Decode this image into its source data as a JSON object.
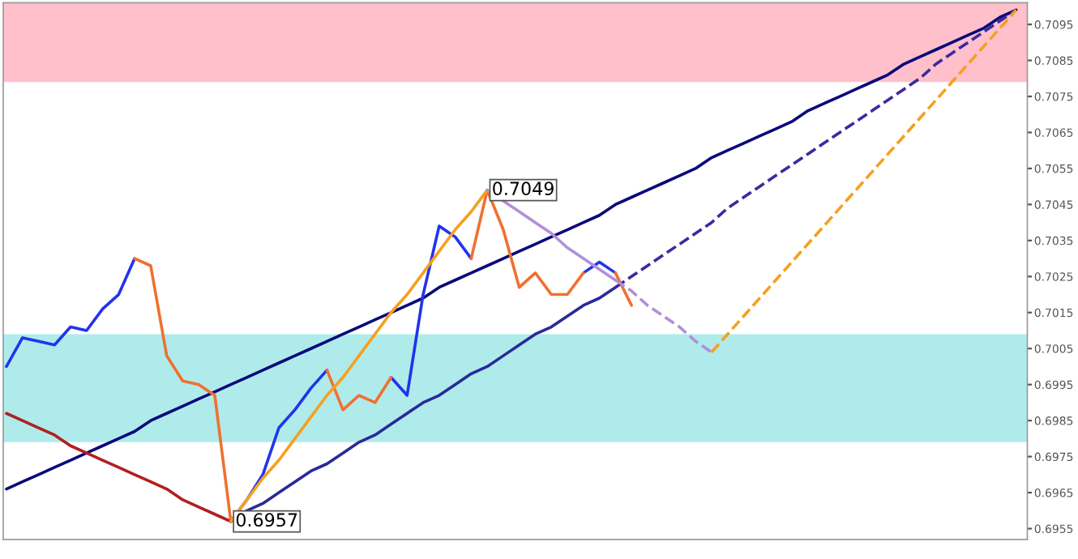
{
  "chart_data": {
    "type": "line",
    "categories": [
      null,
      null,
      null,
      null,
      null,
      null,
      null,
      null,
      null,
      null,
      null,
      null,
      null,
      null,
      null,
      null,
      null,
      null,
      null,
      null,
      null,
      null,
      null,
      null,
      null,
      null,
      null,
      null,
      null,
      null,
      null,
      null,
      null,
      null,
      null,
      null,
      null,
      null,
      null,
      null,
      null,
      null,
      null,
      null,
      null,
      null,
      null,
      null,
      null,
      null,
      null,
      null,
      null,
      null,
      null,
      null,
      null,
      null,
      null,
      null,
      null,
      null,
      null,
      null
    ],
    "ylim": [
      0.6952,
      0.7101
    ],
    "yticks": [
      0.6955,
      0.6965,
      0.6975,
      0.6985,
      0.6995,
      0.7005,
      0.7015,
      0.7025,
      0.7035,
      0.7045,
      0.7055,
      0.7065,
      0.7075,
      0.7085,
      0.7095
    ],
    "tick_labels": "y",
    "grid": false,
    "legend": false,
    "bands": [
      {
        "axis": "y",
        "from": 0.7079,
        "to": 0.7101,
        "color": "#ffc0cb"
      },
      {
        "axis": "y",
        "from": 0.6979,
        "to": 0.7009,
        "color": "#b0ebeb"
      }
    ],
    "series": [
      {
        "color": "#0a0a7a",
        "line_style": "solid",
        "values": [
          0.6966,
          0.6968,
          0.697,
          0.6972,
          0.6974,
          0.6976,
          0.6978,
          0.698,
          0.6982,
          0.6985,
          0.6987,
          0.6989,
          0.6991,
          0.6993,
          0.6995,
          0.6997,
          0.6999,
          0.7001,
          0.7003,
          0.7005,
          0.7007,
          0.7009,
          0.7011,
          0.7013,
          0.7015,
          0.7017,
          0.7019,
          0.7022,
          0.7024,
          0.7026,
          0.7028,
          0.703,
          0.7032,
          0.7034,
          0.7036,
          0.7038,
          0.704,
          0.7042,
          0.7045,
          0.7047,
          0.7049,
          0.7051,
          0.7053,
          0.7055,
          0.7058,
          0.706,
          0.7062,
          0.7064,
          0.7066,
          0.7068,
          0.7071,
          0.7073,
          0.7075,
          0.7077,
          0.7079,
          0.7081,
          0.7084,
          0.7086,
          0.7088,
          0.709,
          0.7092,
          0.7094,
          0.7097,
          0.7099
        ]
      },
      {
        "color": "#2233ee",
        "line_style": "solid",
        "values": [
          0.7,
          0.7008,
          0.7007,
          0.7006,
          0.7011,
          0.701,
          0.7016,
          0.702,
          0.703,
          null,
          null,
          null,
          null,
          null,
          0.6957,
          0.6963,
          0.697,
          0.6983,
          0.6988,
          0.6994,
          0.6999,
          null,
          null,
          null,
          0.6997,
          0.6992,
          0.702,
          0.7039,
          0.7036,
          0.703,
          null,
          null,
          null,
          null,
          null,
          null,
          0.7026,
          0.7029,
          0.7026,
          null,
          null,
          null,
          null,
          null,
          null,
          null,
          null,
          null,
          null,
          null,
          null,
          null,
          null,
          null,
          null,
          null,
          null,
          null,
          null,
          null,
          null,
          null,
          null,
          null
        ]
      },
      {
        "color": "#f07030",
        "line_style": "solid",
        "values": [
          null,
          null,
          null,
          null,
          null,
          null,
          null,
          null,
          0.703,
          0.7028,
          0.7003,
          0.6996,
          0.6995,
          0.6992,
          0.6957,
          null,
          null,
          null,
          null,
          null,
          0.6999,
          0.6988,
          0.6992,
          0.699,
          0.6997,
          null,
          null,
          null,
          null,
          0.703,
          0.7049,
          0.7038,
          0.7022,
          0.7026,
          0.702,
          0.702,
          0.7026,
          null,
          0.7026,
          0.7017,
          null,
          null,
          null,
          null,
          null,
          null,
          null,
          null,
          null,
          null,
          null,
          null,
          null,
          null,
          null,
          null,
          null,
          null,
          null,
          null,
          null,
          null,
          null,
          null
        ]
      },
      {
        "color": "#2a2a9a",
        "line_style": "solid",
        "values": [
          null,
          null,
          null,
          null,
          null,
          null,
          null,
          null,
          null,
          null,
          null,
          null,
          null,
          null,
          0.6957,
          0.696,
          0.6962,
          0.6965,
          0.6968,
          0.6971,
          0.6973,
          0.6976,
          0.6979,
          0.6981,
          0.6984,
          0.6987,
          0.699,
          0.6992,
          0.6995,
          0.6998,
          0.7,
          0.7003,
          0.7006,
          0.7009,
          0.7011,
          0.7014,
          0.7017,
          0.7019,
          0.7022,
          null,
          null,
          null,
          null,
          null,
          null,
          null,
          null,
          null,
          null,
          null,
          null,
          null,
          null,
          null,
          null,
          null,
          null,
          null,
          null,
          null,
          null,
          null,
          null,
          null
        ]
      },
      {
        "color": "#3a2aa0",
        "line_style": "dashed",
        "values": [
          null,
          null,
          null,
          null,
          null,
          null,
          null,
          null,
          null,
          null,
          null,
          null,
          null,
          null,
          null,
          null,
          null,
          null,
          null,
          null,
          null,
          null,
          null,
          null,
          null,
          null,
          null,
          null,
          null,
          null,
          null,
          null,
          null,
          null,
          null,
          null,
          null,
          null,
          0.7022,
          0.7025,
          0.7028,
          0.7031,
          0.7034,
          0.7037,
          0.704,
          0.7044,
          0.7047,
          0.705,
          0.7053,
          0.7056,
          0.7059,
          0.7062,
          0.7065,
          0.7068,
          0.7071,
          0.7074,
          0.7077,
          0.708,
          0.7084,
          0.7087,
          0.709,
          0.7093,
          0.7096,
          0.7099
        ]
      },
      {
        "color": "#b02020",
        "line_style": "solid",
        "values": [
          0.6987,
          0.6985,
          0.6983,
          0.6981,
          0.6978,
          0.6976,
          0.6974,
          0.6972,
          0.697,
          0.6968,
          0.6966,
          0.6963,
          0.6961,
          0.6959,
          0.6957,
          null,
          null,
          null,
          null,
          null,
          null,
          null,
          null,
          null,
          null,
          null,
          null,
          null,
          null,
          null,
          null,
          null,
          null,
          null,
          null,
          null,
          null,
          null,
          null,
          null,
          null,
          null,
          null,
          null,
          null,
          null,
          null,
          null,
          null,
          null,
          null,
          null,
          null,
          null,
          null,
          null,
          null,
          null,
          null,
          null,
          null,
          null,
          null,
          null
        ]
      },
      {
        "color": "#f5a020",
        "line_style": "solid",
        "values": [
          null,
          null,
          null,
          null,
          null,
          null,
          null,
          null,
          null,
          null,
          null,
          null,
          null,
          null,
          0.6957,
          0.6963,
          0.6969,
          0.6974,
          0.698,
          0.6986,
          0.6992,
          0.6997,
          0.7003,
          0.7009,
          0.7015,
          0.702,
          0.7026,
          0.7032,
          0.7038,
          0.7043,
          0.7049,
          null,
          null,
          null,
          null,
          null,
          null,
          null,
          null,
          null,
          null,
          null,
          null,
          null,
          null,
          null,
          null,
          null,
          null,
          null,
          null,
          null,
          null,
          null,
          null,
          null,
          null,
          null,
          null,
          null,
          null,
          null,
          null,
          null
        ]
      },
      {
        "color": "#b090d8",
        "line_style": "solid",
        "values": [
          null,
          null,
          null,
          null,
          null,
          null,
          null,
          null,
          null,
          null,
          null,
          null,
          null,
          null,
          null,
          null,
          null,
          null,
          null,
          null,
          null,
          null,
          null,
          null,
          null,
          null,
          null,
          null,
          null,
          null,
          0.7049,
          0.7046,
          0.7043,
          0.704,
          0.7037,
          0.7033,
          0.703,
          0.7027,
          0.7024,
          null,
          null,
          null,
          null,
          null,
          null,
          null,
          null,
          null,
          null,
          null,
          null,
          null,
          null,
          null,
          null,
          null,
          null,
          null,
          null,
          null,
          null,
          null,
          null,
          null
        ]
      },
      {
        "color": "#b090d8",
        "line_style": "dashed",
        "values": [
          null,
          null,
          null,
          null,
          null,
          null,
          null,
          null,
          null,
          null,
          null,
          null,
          null,
          null,
          null,
          null,
          null,
          null,
          null,
          null,
          null,
          null,
          null,
          null,
          null,
          null,
          null,
          null,
          null,
          null,
          null,
          null,
          null,
          null,
          null,
          null,
          null,
          null,
          0.7024,
          0.7021,
          0.7017,
          0.7014,
          0.7011,
          0.7007,
          0.7004,
          null,
          null,
          null,
          null,
          null,
          null,
          null,
          null,
          null,
          null,
          null,
          null,
          null,
          null,
          null,
          null,
          null,
          null,
          null
        ]
      },
      {
        "color": "#f5a020",
        "line_style": "dashed",
        "values": [
          null,
          null,
          null,
          null,
          null,
          null,
          null,
          null,
          null,
          null,
          null,
          null,
          null,
          null,
          null,
          null,
          null,
          null,
          null,
          null,
          null,
          null,
          null,
          null,
          null,
          null,
          null,
          null,
          null,
          null,
          null,
          null,
          null,
          null,
          null,
          null,
          null,
          null,
          null,
          null,
          null,
          null,
          null,
          null,
          0.7004,
          0.7009,
          0.7014,
          0.7019,
          0.7024,
          0.7029,
          0.7034,
          0.7039,
          0.7044,
          0.7049,
          0.7054,
          0.7059,
          0.7064,
          0.7069,
          0.7074,
          0.7079,
          0.7084,
          0.7089,
          0.7094,
          0.7099
        ]
      }
    ],
    "annotations": [
      {
        "text": "0.7049",
        "y": 0.7049
      },
      {
        "text": "0.6957",
        "y": 0.6957
      }
    ]
  }
}
